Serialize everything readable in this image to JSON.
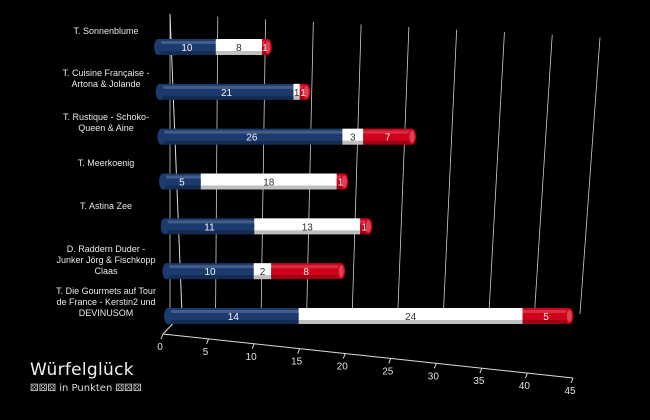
{
  "chart_data": {
    "type": "bar",
    "orientation": "horizontal",
    "stacked": true,
    "title": "Würfelglück",
    "subtitle": "⚄⚄⚄ in Punkten ⚄⚄⚄",
    "categories": [
      "T. Sonnenblume",
      "T. Cuisine Française - Artona & Jolande",
      "T. Rustique - Schoko-Queen & Aine",
      "T. Meerkoenig",
      "T. Astina Zee",
      "D. Raddern Duder - Junker Jörg & Fischkopp Claas",
      "T. Die Gourmets auf Tour de France - Kerstin2 und DEVINUSOM"
    ],
    "series": [
      {
        "values": [
          10,
          21,
          26,
          5,
          11,
          10,
          14
        ],
        "color": "#1b3a6e"
      },
      {
        "values": [
          8,
          1,
          3,
          18,
          13,
          2,
          24
        ],
        "color": "#ffffff"
      },
      {
        "values": [
          1,
          1,
          7,
          1,
          1,
          8,
          5
        ],
        "color": "#d0021b"
      }
    ],
    "xlim": [
      0,
      45
    ],
    "xticks": [
      "0",
      "5",
      "10",
      "15",
      "20",
      "25",
      "30",
      "35",
      "40",
      "45"
    ],
    "grid": true
  }
}
